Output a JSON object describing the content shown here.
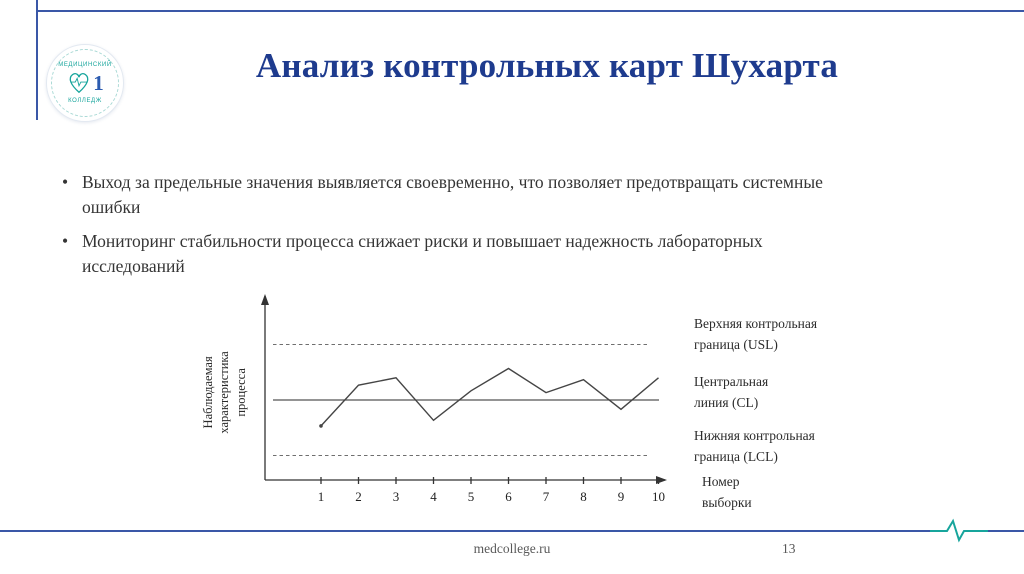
{
  "colors": {
    "accent_blue": "#3a57a7",
    "title_blue": "#1e3b8e",
    "teal": "#17a59c",
    "text_dark": "#353535",
    "muted_gray": "#595959"
  },
  "header": {
    "title": "Анализ контрольных карт Шухарта"
  },
  "logo": {
    "line1": "МЕДИЦИНСКИЙ",
    "line2": "КОЛЛЕДЖ",
    "number": "1"
  },
  "bullets": [
    {
      "text": "Выход за предельные значения выявляется своевременно, что позволяет предотвращать системные ошибки"
    },
    {
      "text": "Мониторинг стабильности процесса снижает риски и повышает надежность лабораторных исследований"
    }
  ],
  "chart_data": {
    "type": "line",
    "title": "",
    "x": [
      1,
      2,
      3,
      4,
      5,
      6,
      7,
      8,
      9,
      10
    ],
    "values": [
      3.6,
      5.8,
      6.2,
      3.9,
      5.5,
      6.7,
      5.4,
      6.1,
      4.5,
      6.2
    ],
    "reference_lines": {
      "usl": 8,
      "cl": 5,
      "lcl": 2
    },
    "ylim": [
      0,
      10
    ],
    "grid": false,
    "ylabel": "Наблюдаемая\nхарактеристика\nпроцесса",
    "xlabel": "Номер\nвыборки",
    "labels": {
      "usl": "Верхняя контрольная\nграница (USL)",
      "cl": "Центральная\nлиния (CL)",
      "lcl": "Нижняя контрольная\nграница (LCL)"
    }
  },
  "footer": {
    "site": "medcollege.ru",
    "page": "13"
  }
}
